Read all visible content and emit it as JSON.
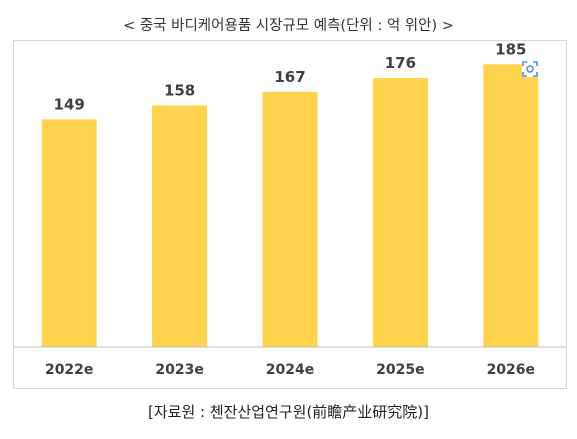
{
  "title": "< 중국 바디케어용품 시장규모 예측(단위 : 억 위안) >",
  "source": "[자료원 : 첸잔산업연구원(前瞻产业研究院)]",
  "colors": {
    "bar": "#FFD34E",
    "baseline": "#BFBFBF",
    "text": "#404040"
  },
  "icons": {
    "corner": "scan-icon"
  },
  "chart_data": {
    "type": "bar",
    "title": "< 중국 바디케어용품 시장규모 예측(단위 : 억 위안) >",
    "categories": [
      "2022e",
      "2023e",
      "2024e",
      "2025e",
      "2026e"
    ],
    "values": [
      149,
      158,
      167,
      176,
      185
    ],
    "data_labels": [
      "149",
      "158",
      "167",
      "176",
      "185"
    ],
    "xlabel": "",
    "ylabel": "",
    "ylim": [
      0,
      195
    ],
    "grid": false,
    "legend": "none"
  }
}
